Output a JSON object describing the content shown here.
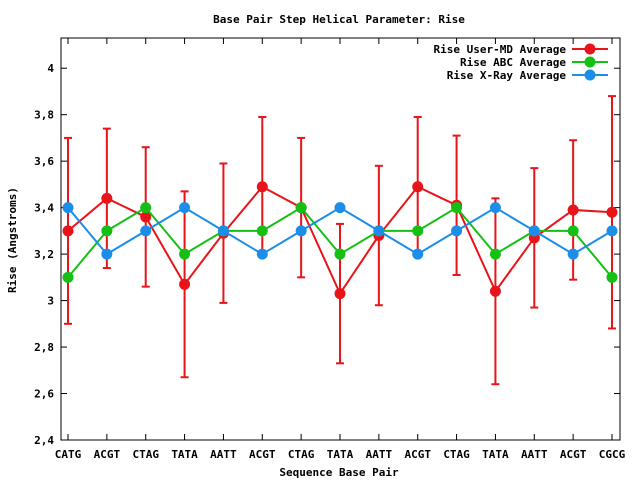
{
  "chart_data": {
    "type": "line",
    "title": "Base Pair Step Helical Parameter: Rise",
    "xlabel": "Sequence Base Pair",
    "ylabel": "Rise (Angstroms)",
    "categories": [
      "CATG",
      "ACGT",
      "CTAG",
      "TATA",
      "AATT",
      "ACGT",
      "CTAG",
      "TATA",
      "AATT",
      "ACGT",
      "CTAG",
      "TATA",
      "AATT",
      "ACGT",
      "CGCG"
    ],
    "ylim": [
      2.4,
      4.13
    ],
    "yticks": [
      2.4,
      2.6,
      2.8,
      3,
      3.2,
      3.4,
      3.6,
      3.8,
      4
    ],
    "ytick_labels": [
      "2,4",
      "2,6",
      "2,8",
      "3",
      "3,2",
      "3,4",
      "3,6",
      "3,8",
      "4"
    ],
    "legend_position": "top-right",
    "grid": false,
    "series": [
      {
        "name": "Rise User-MD Average",
        "color": "#e8141a",
        "values": [
          3.3,
          3.44,
          3.36,
          3.07,
          3.29,
          3.49,
          3.4,
          3.03,
          3.28,
          3.49,
          3.41,
          3.04,
          3.27,
          3.39,
          3.38
        ],
        "error_low": [
          2.9,
          3.14,
          3.06,
          2.67,
          2.99,
          3.19,
          3.1,
          2.73,
          2.98,
          3.19,
          3.11,
          2.64,
          2.97,
          3.09,
          2.88
        ],
        "error_high": [
          3.7,
          3.74,
          3.66,
          3.47,
          3.59,
          3.79,
          3.7,
          3.33,
          3.58,
          3.79,
          3.71,
          3.44,
          3.57,
          3.69,
          3.88
        ]
      },
      {
        "name": "Rise ABC Average",
        "color": "#14c014",
        "values": [
          3.1,
          3.3,
          3.4,
          3.2,
          3.3,
          3.3,
          3.4,
          3.2,
          3.3,
          3.3,
          3.4,
          3.2,
          3.3,
          3.3,
          3.1
        ]
      },
      {
        "name": "Rise X-Ray Average",
        "color": "#1a8ee8",
        "values": [
          3.4,
          3.2,
          3.3,
          3.4,
          3.3,
          3.2,
          3.3,
          3.4,
          3.3,
          3.2,
          3.3,
          3.4,
          3.3,
          3.2,
          3.3
        ]
      }
    ]
  }
}
